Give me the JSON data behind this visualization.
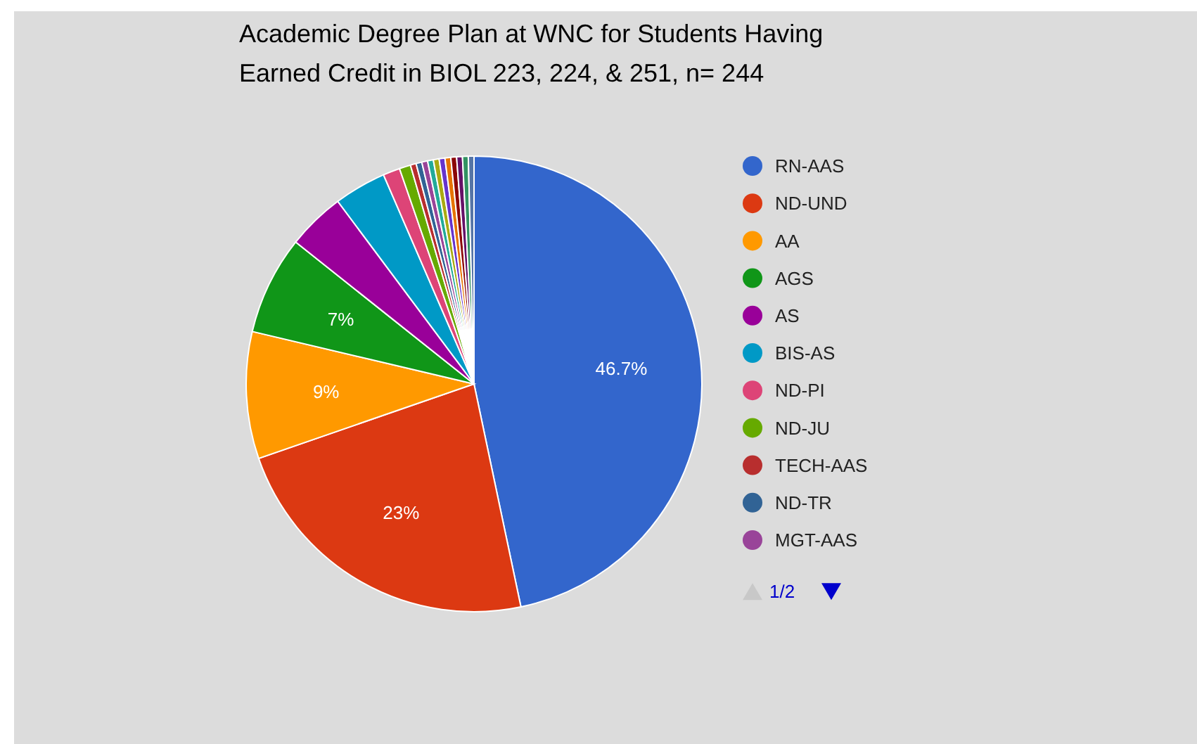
{
  "chart_data": {
    "type": "pie",
    "title": "Academic Degree Plan at WNC for Students Having Earned Credit in BIOL 223, 224, & 251, n= 244",
    "categories": [
      "RN-AAS",
      "ND-UND",
      "AA",
      "AGS",
      "AS",
      "BIS-AS",
      "ND-PI",
      "ND-JU",
      "TECH-AAS",
      "ND-TR",
      "MGT-AAS",
      null,
      null,
      null,
      null,
      null,
      null,
      null,
      null
    ],
    "values": [
      46.7,
      23,
      9,
      7,
      4.1,
      3.7,
      1.2,
      0.8,
      0.41,
      0.41,
      0.41,
      0.41,
      0.41,
      0.41,
      0.41,
      0.41,
      0.41,
      0.41,
      0.4
    ],
    "colors": [
      "#3366cc",
      "#dc3912",
      "#ff9900",
      "#109618",
      "#990099",
      "#0099c6",
      "#dd4477",
      "#66aa00",
      "#b82e2e",
      "#316395",
      "#994499",
      "#22aa99",
      "#aaaa11",
      "#6633cc",
      "#e67300",
      "#8b0707",
      "#651067",
      "#329262",
      "#5574a6"
    ],
    "value_labels": [
      "46.7%",
      "23%",
      "9%",
      "7%",
      null,
      null,
      null,
      null,
      null,
      null,
      null,
      null,
      null,
      null,
      null,
      null,
      null,
      null,
      null
    ],
    "legend": "right",
    "annotations": [
      "1/2"
    ]
  }
}
